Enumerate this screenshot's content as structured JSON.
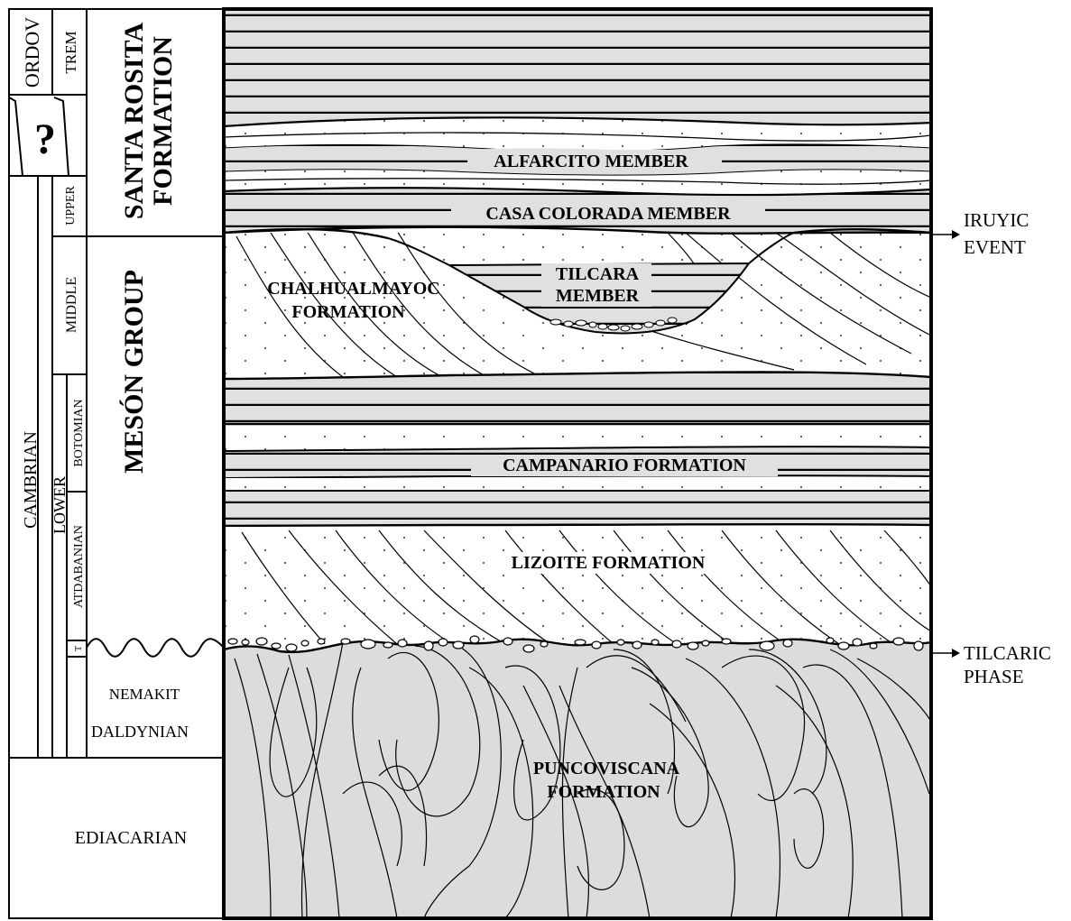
{
  "time_column": {
    "periods": [
      "ORDOV",
      "CAMBRIAN",
      "EDIACARIAN"
    ],
    "epochs": [
      "TREM",
      "UPPER",
      "MIDDLE",
      "LOWER"
    ],
    "stages": [
      "BOTOMIAN",
      "ATDABANIAN",
      "T"
    ],
    "unknown_marker": "?",
    "nemakit": [
      "NEMAKIT",
      "DALDYNIAN"
    ]
  },
  "groups": {
    "santa_rosita": [
      "SANTA ROSITA",
      "FORMATION"
    ],
    "meson": "MESÓN GROUP"
  },
  "units": {
    "alfarcito": "ALFARCITO MEMBER",
    "casa_colorada": "CASA COLORADA MEMBER",
    "tilcara": [
      "TILCARA",
      "MEMBER"
    ],
    "chalhualmayoc": [
      "CHALHUALMAYOC",
      "FORMATION"
    ],
    "campanario": "CAMPANARIO FORMATION",
    "lizoite": "LIZOITE FORMATION",
    "puncoviscana": [
      "PUNCOVISCANA",
      "FORMATION"
    ]
  },
  "events": {
    "iruyic": [
      "IRUYIC",
      "EVENT"
    ],
    "tilcaric": [
      "TILCARIC",
      "PHASE"
    ]
  },
  "colors": {
    "line": "#000000",
    "shale": "#e0e0e0",
    "sand": "#ffffff",
    "basement": "#dcdcdc"
  }
}
